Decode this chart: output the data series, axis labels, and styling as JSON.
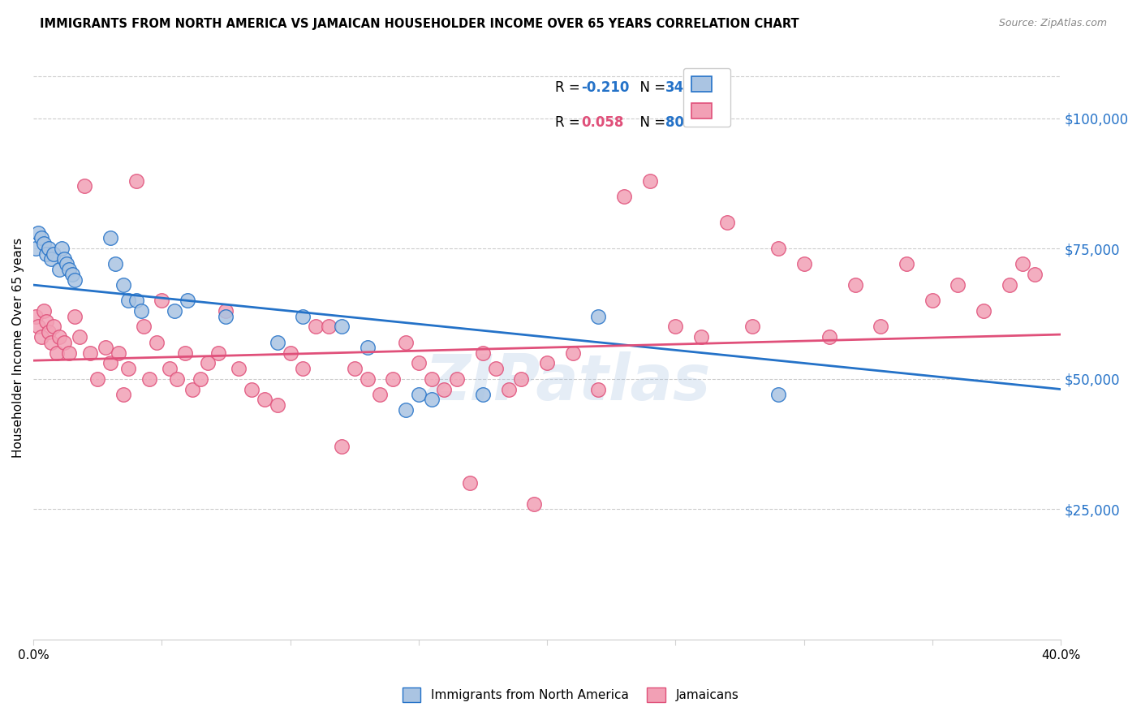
{
  "title": "IMMIGRANTS FROM NORTH AMERICA VS JAMAICAN HOUSEHOLDER INCOME OVER 65 YEARS CORRELATION CHART",
  "source": "Source: ZipAtlas.com",
  "ylabel": "Householder Income Over 65 years",
  "y_tick_labels": [
    "$25,000",
    "$50,000",
    "$75,000",
    "$100,000"
  ],
  "y_tick_values": [
    25000,
    50000,
    75000,
    100000
  ],
  "ylim": [
    0,
    112000
  ],
  "xlim": [
    0.0,
    0.4
  ],
  "blue_color": "#aac4e2",
  "pink_color": "#f2a0b5",
  "blue_line_color": "#2472c8",
  "pink_line_color": "#e0507a",
  "blue_r": -0.21,
  "blue_n": 34,
  "pink_r": 0.058,
  "pink_n": 80,
  "watermark": "ZIPatlas",
  "blue_line_y0": 68000,
  "blue_line_y1": 48000,
  "pink_line_y0": 53500,
  "pink_line_y1": 58500,
  "blue_points_x": [
    0.001,
    0.002,
    0.003,
    0.004,
    0.005,
    0.006,
    0.007,
    0.008,
    0.01,
    0.011,
    0.012,
    0.013,
    0.014,
    0.015,
    0.016,
    0.03,
    0.032,
    0.035,
    0.037,
    0.04,
    0.042,
    0.055,
    0.06,
    0.075,
    0.095,
    0.105,
    0.12,
    0.13,
    0.145,
    0.15,
    0.155,
    0.175,
    0.22,
    0.29
  ],
  "blue_points_y": [
    75000,
    78000,
    77000,
    76000,
    74000,
    75000,
    73000,
    74000,
    71000,
    75000,
    73000,
    72000,
    71000,
    70000,
    69000,
    77000,
    72000,
    68000,
    65000,
    65000,
    63000,
    63000,
    65000,
    62000,
    57000,
    62000,
    60000,
    56000,
    44000,
    47000,
    46000,
    47000,
    62000,
    47000
  ],
  "pink_points_x": [
    0.001,
    0.002,
    0.003,
    0.004,
    0.005,
    0.006,
    0.007,
    0.008,
    0.009,
    0.01,
    0.012,
    0.014,
    0.016,
    0.018,
    0.02,
    0.022,
    0.025,
    0.028,
    0.03,
    0.033,
    0.035,
    0.037,
    0.04,
    0.043,
    0.045,
    0.048,
    0.05,
    0.053,
    0.056,
    0.059,
    0.062,
    0.065,
    0.068,
    0.072,
    0.075,
    0.08,
    0.085,
    0.09,
    0.095,
    0.1,
    0.105,
    0.11,
    0.115,
    0.12,
    0.125,
    0.13,
    0.135,
    0.14,
    0.145,
    0.15,
    0.155,
    0.16,
    0.165,
    0.17,
    0.175,
    0.18,
    0.185,
    0.19,
    0.195,
    0.2,
    0.21,
    0.22,
    0.23,
    0.24,
    0.25,
    0.26,
    0.27,
    0.28,
    0.29,
    0.3,
    0.31,
    0.32,
    0.33,
    0.34,
    0.35,
    0.36,
    0.37,
    0.38,
    0.385,
    0.39
  ],
  "pink_points_y": [
    62000,
    60000,
    58000,
    63000,
    61000,
    59000,
    57000,
    60000,
    55000,
    58000,
    57000,
    55000,
    62000,
    58000,
    87000,
    55000,
    50000,
    56000,
    53000,
    55000,
    47000,
    52000,
    88000,
    60000,
    50000,
    57000,
    65000,
    52000,
    50000,
    55000,
    48000,
    50000,
    53000,
    55000,
    63000,
    52000,
    48000,
    46000,
    45000,
    55000,
    52000,
    60000,
    60000,
    37000,
    52000,
    50000,
    47000,
    50000,
    57000,
    53000,
    50000,
    48000,
    50000,
    30000,
    55000,
    52000,
    48000,
    50000,
    26000,
    53000,
    55000,
    48000,
    85000,
    88000,
    60000,
    58000,
    80000,
    60000,
    75000,
    72000,
    58000,
    68000,
    60000,
    72000,
    65000,
    68000,
    63000,
    68000,
    72000,
    70000
  ]
}
